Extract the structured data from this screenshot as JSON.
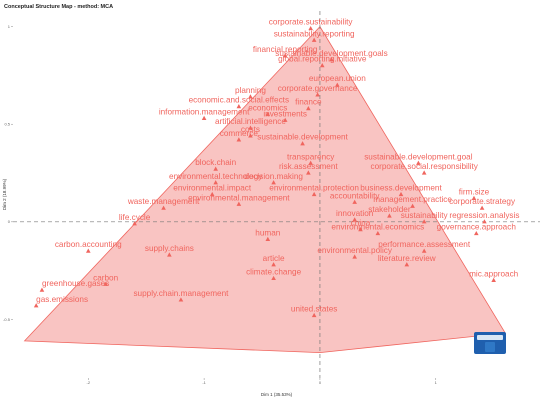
{
  "chart_data": {
    "type": "scatter",
    "title": "Conceptual Structure Map - method: MCA",
    "xlabel": "Dim 1 (35.53%)",
    "ylabel": "Dim 2 (18.99%)",
    "xlim": [
      -2.65,
      1.9
    ],
    "ylim": [
      -0.8,
      1.08
    ],
    "x_ticks": [
      -2,
      -1,
      0,
      1
    ],
    "y_ticks": [
      -0.5,
      0,
      0.5,
      1
    ],
    "grid": false,
    "reference_lines": [
      0,
      0
    ],
    "cluster": {
      "color": "#f0655e",
      "hull": [
        [
          0.0,
          1.0
        ],
        [
          1.6,
          -0.57
        ],
        [
          0.0,
          -0.67
        ],
        [
          -2.55,
          -0.61
        ]
      ]
    },
    "points": [
      {
        "label": "corporate.sustainability",
        "x": -0.08,
        "y": 0.99
      },
      {
        "label": "sustainability.reporting",
        "x": -0.05,
        "y": 0.93
      },
      {
        "label": "financial.reporting",
        "x": -0.3,
        "y": 0.85
      },
      {
        "label": "sustainable.development.goals",
        "x": 0.1,
        "y": 0.83
      },
      {
        "label": "global.reporting.initiative",
        "x": 0.02,
        "y": 0.8
      },
      {
        "label": "european.union",
        "x": 0.15,
        "y": 0.7
      },
      {
        "label": "planning",
        "x": -0.6,
        "y": 0.64
      },
      {
        "label": "corporate.governance",
        "x": -0.02,
        "y": 0.65
      },
      {
        "label": "economic.and.social.effects",
        "x": -0.7,
        "y": 0.59
      },
      {
        "label": "finance",
        "x": -0.1,
        "y": 0.58
      },
      {
        "label": "economics",
        "x": -0.45,
        "y": 0.55
      },
      {
        "label": "information.management",
        "x": -1.0,
        "y": 0.53
      },
      {
        "label": "investments",
        "x": -0.3,
        "y": 0.52
      },
      {
        "label": "artificial.intelligence",
        "x": -0.6,
        "y": 0.48
      },
      {
        "label": "costs",
        "x": -0.6,
        "y": 0.44
      },
      {
        "label": "commerce",
        "x": -0.7,
        "y": 0.42
      },
      {
        "label": "sustainable.development",
        "x": -0.15,
        "y": 0.4
      },
      {
        "label": "transparency",
        "x": -0.08,
        "y": 0.3
      },
      {
        "label": "sustainable.development.goal",
        "x": 0.85,
        "y": 0.3
      },
      {
        "label": "block.chain",
        "x": -0.9,
        "y": 0.27
      },
      {
        "label": "corporate.social.responsibility",
        "x": 0.9,
        "y": 0.25
      },
      {
        "label": "risk.assessment",
        "x": -0.1,
        "y": 0.25
      },
      {
        "label": "decision.making",
        "x": -0.4,
        "y": 0.2
      },
      {
        "label": "environmental.technology",
        "x": -0.9,
        "y": 0.2
      },
      {
        "label": "environmental.protection",
        "x": -0.05,
        "y": 0.14
      },
      {
        "label": "environmental.impact",
        "x": -0.93,
        "y": 0.14
      },
      {
        "label": "business.development",
        "x": 0.7,
        "y": 0.14
      },
      {
        "label": "firm.size",
        "x": 1.33,
        "y": 0.12
      },
      {
        "label": "accountability",
        "x": 0.3,
        "y": 0.1
      },
      {
        "label": "environmental.management",
        "x": -0.7,
        "y": 0.09
      },
      {
        "label": "waste.management",
        "x": -1.35,
        "y": 0.07
      },
      {
        "label": "management.practice",
        "x": 0.8,
        "y": 0.08
      },
      {
        "label": "corporate.strategy",
        "x": 1.4,
        "y": 0.07
      },
      {
        "label": "stakeholder",
        "x": 0.6,
        "y": 0.03
      },
      {
        "label": "innovation",
        "x": 0.3,
        "y": 0.01
      },
      {
        "label": "sustainability",
        "x": 0.9,
        "y": 0.0
      },
      {
        "label": "regression.analysis",
        "x": 1.42,
        "y": 0.0
      },
      {
        "label": "life.cycle",
        "x": -1.6,
        "y": -0.01
      },
      {
        "label": "china",
        "x": 0.35,
        "y": -0.04
      },
      {
        "label": "environmental.economics",
        "x": 0.5,
        "y": -0.06
      },
      {
        "label": "governance.approach",
        "x": 1.35,
        "y": -0.06
      },
      {
        "label": "human",
        "x": -0.45,
        "y": -0.09
      },
      {
        "label": "performance.assessment",
        "x": 0.9,
        "y": -0.15
      },
      {
        "label": "carbon.accounting",
        "x": -2.0,
        "y": -0.15
      },
      {
        "label": "supply.chains",
        "x": -1.3,
        "y": -0.17
      },
      {
        "label": "environmental.policy",
        "x": 0.3,
        "y": -0.18
      },
      {
        "label": "literature.review",
        "x": 0.75,
        "y": -0.22
      },
      {
        "label": "article",
        "x": -0.4,
        "y": -0.22
      },
      {
        "label": "climate.change",
        "x": -0.4,
        "y": -0.29
      },
      {
        "label": "mic.approach",
        "x": 1.5,
        "y": -0.3
      },
      {
        "label": "carbon",
        "x": -1.85,
        "y": -0.32
      },
      {
        "label": "greenhouse.gases",
        "x": -2.4,
        "y": -0.35
      },
      {
        "label": "supply.chain.management",
        "x": -1.2,
        "y": -0.4
      },
      {
        "label": "gas.emissions",
        "x": -2.45,
        "y": -0.43
      },
      {
        "label": "united.states",
        "x": -0.05,
        "y": -0.48
      }
    ]
  }
}
